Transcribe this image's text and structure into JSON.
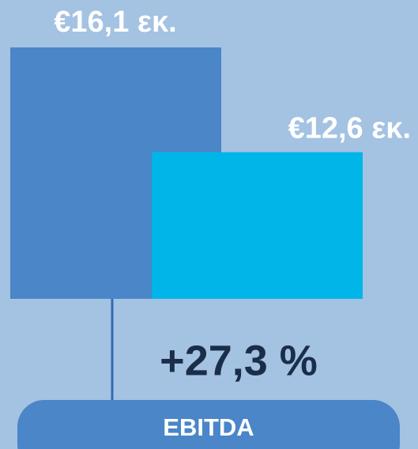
{
  "chart_data": {
    "type": "bar",
    "categories": [
      null,
      null
    ],
    "values": [
      16.1,
      12.6
    ],
    "value_labels": [
      "€16,1 εκ.",
      "€12,6 εκ."
    ],
    "colors": [
      "#4a86c8",
      "#00b5e8"
    ],
    "ylim": [
      7.7,
      16.1
    ],
    "change": "+27,3 %",
    "label": "EBITDA"
  }
}
